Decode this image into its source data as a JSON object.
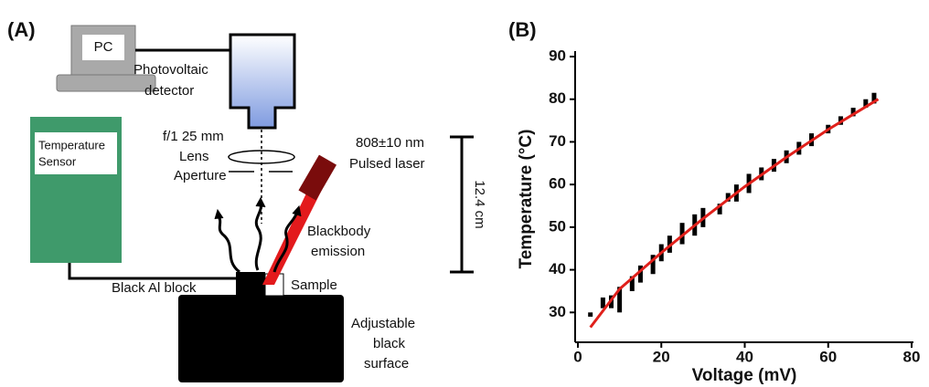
{
  "diagram": {
    "panel_label": "(A)",
    "pc": "PC",
    "detector": [
      "Photovoltaic",
      "detector"
    ],
    "lens": [
      "f/1 25 mm",
      "Lens",
      "Aperture"
    ],
    "sensor": [
      "Temperature",
      "Sensor"
    ],
    "laser": [
      "808±10 nm",
      "Pulsed laser"
    ],
    "distance": "12.4 cm",
    "emission": [
      "Blackbody",
      "emission"
    ],
    "block": "Black Al block",
    "sample": "Sample",
    "surface": [
      "Adjustable",
      "black",
      "surface"
    ]
  },
  "chart_data": {
    "type": "range",
    "title": "(B)",
    "xlabel": "Voltage (mV)",
    "ylabel": "Temperature (°C)",
    "x": [
      3,
      6,
      8,
      10,
      13,
      15,
      18,
      20,
      22,
      25,
      28,
      30,
      34,
      36,
      38,
      41,
      44,
      47,
      50,
      53,
      56,
      60,
      63,
      66,
      69,
      71
    ],
    "low": [
      29,
      31,
      31,
      30,
      35,
      37,
      39,
      42,
      44,
      46,
      48,
      50,
      53,
      56,
      56,
      58,
      61,
      63,
      65,
      67,
      69,
      72,
      74,
      76,
      78,
      79
    ],
    "high": [
      30,
      33.5,
      34,
      36,
      38.5,
      41,
      43.5,
      46,
      48,
      51,
      53,
      54.5,
      55.5,
      58,
      60,
      62.5,
      64,
      66,
      68,
      70,
      72,
      74,
      76,
      78,
      80,
      81.5
    ],
    "color": "#000000",
    "fit": {
      "type": "line",
      "x": [
        3,
        10,
        20,
        30,
        40,
        50,
        60,
        72
      ],
      "values": [
        26.5,
        35.5,
        44,
        52,
        59.5,
        66.4,
        72.9,
        80
      ],
      "color": "#e0201b"
    },
    "xlim": [
      0,
      80
    ],
    "xticks": [
      0,
      20,
      40,
      60,
      80
    ],
    "ylim": [
      23,
      90
    ],
    "yticks": [
      30,
      40,
      50,
      60,
      70,
      80,
      90
    ]
  }
}
